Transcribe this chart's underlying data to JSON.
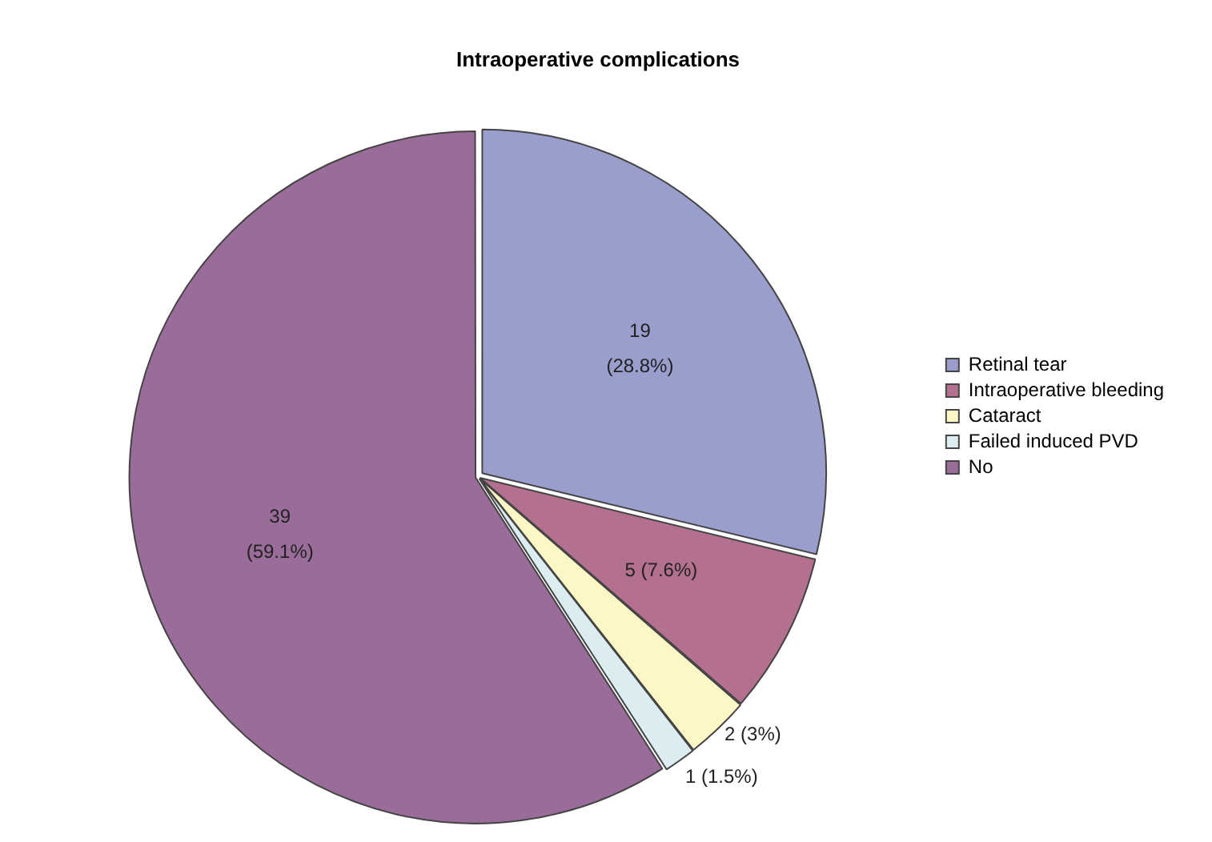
{
  "chart_data": {
    "type": "pie",
    "title": "Intraoperative complications",
    "categories": [
      "Retinal tear",
      "Intraoperative bleeding",
      "Cataract",
      "Failed induced PVD",
      "No"
    ],
    "values": [
      19,
      5,
      2,
      1,
      39
    ],
    "colors": [
      "#9a9ecc",
      "#b4708f",
      "#fdf7c6",
      "#dcedf2",
      "#9a6c99"
    ],
    "value_labels": [
      "19\n(28.8%)",
      "5 (7.6%)",
      "2 (3%)",
      "1 (1.5%)",
      "39\n(59.1%)"
    ],
    "legend": "right"
  }
}
